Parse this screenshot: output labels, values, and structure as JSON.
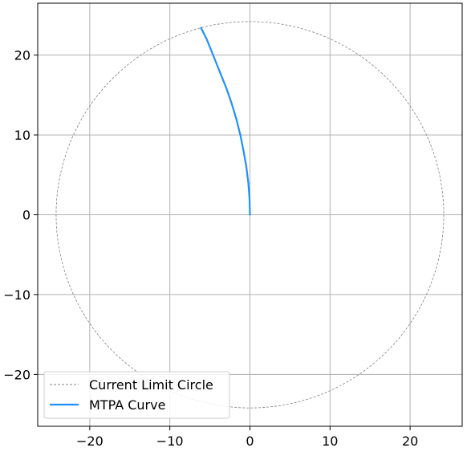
{
  "chart_data": {
    "type": "line",
    "title": "",
    "xlabel": "",
    "ylabel": "",
    "xlim": [
      -26.5,
      26.5
    ],
    "ylim": [
      -26.5,
      26.5
    ],
    "grid": true,
    "legend_position": "lower-left",
    "xticks": [
      -20,
      -10,
      0,
      10,
      20
    ],
    "yticks": [
      -20,
      -10,
      0,
      10,
      20
    ],
    "xtick_labels": [
      "−20",
      "−10",
      "0",
      "10",
      "20"
    ],
    "ytick_labels": [
      "−20",
      "−10",
      "0",
      "10",
      "20"
    ],
    "series": [
      {
        "name": "Current Limit Circle",
        "style": "dashed",
        "color": "#808080",
        "radius": 24.2,
        "center": [
          0,
          0
        ]
      },
      {
        "name": "MTPA Curve",
        "style": "solid",
        "color": "#1e90ff",
        "x": [
          0,
          -0.05,
          -0.2,
          -0.45,
          -0.8,
          -1.2,
          -1.7,
          -2.3,
          -3.0,
          -3.8,
          -4.6,
          -5.4,
          -6.1
        ],
        "y": [
          0,
          2,
          4,
          6,
          8,
          10,
          12,
          14,
          16,
          18,
          20,
          22,
          23.4
        ]
      }
    ]
  }
}
